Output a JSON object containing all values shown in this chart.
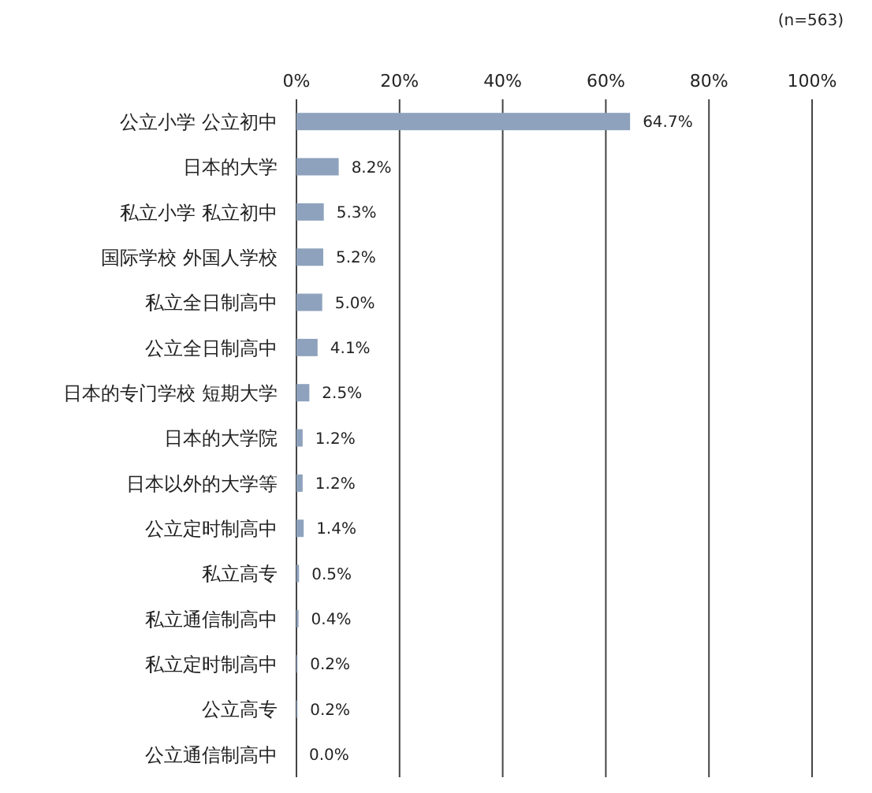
{
  "chart_data": {
    "type": "bar",
    "orientation": "horizontal",
    "categories": [
      "公立小学 公立初中",
      "日本的大学",
      "私立小学 私立初中",
      "国际学校 外国人学校",
      "私立全日制高中",
      "公立全日制高中",
      "日本的专门学校 短期大学",
      "日本的大学院",
      "日本以外的大学等",
      "公立定时制高中",
      "私立高专",
      "私立通信制高中",
      "私立定时制高中",
      "公立高专",
      "公立通信制高中"
    ],
    "values": [
      64.7,
      8.2,
      5.3,
      5.2,
      5.0,
      4.1,
      2.5,
      1.2,
      1.2,
      1.4,
      0.5,
      0.4,
      0.2,
      0.2,
      0.0
    ],
    "value_labels": [
      "64.7%",
      "8.2%",
      "5.3%",
      "5.2%",
      "5.0%",
      "4.1%",
      "2.5%",
      "1.2%",
      "1.2%",
      "1.4%",
      "0.5%",
      "0.4%",
      "0.2%",
      "0.2%",
      "0.0%"
    ],
    "color": "#8ea2bd",
    "xlim": [
      0,
      100
    ],
    "xticks": [
      {
        "value": 0,
        "label": "0%"
      },
      {
        "value": 20,
        "label": "20%"
      },
      {
        "value": 40,
        "label": "40%"
      },
      {
        "value": 60,
        "label": "60%"
      },
      {
        "value": 80,
        "label": "80%"
      },
      {
        "value": 100,
        "label": "100%"
      }
    ],
    "grid": "x",
    "annotations": [
      "(n=563)"
    ]
  }
}
